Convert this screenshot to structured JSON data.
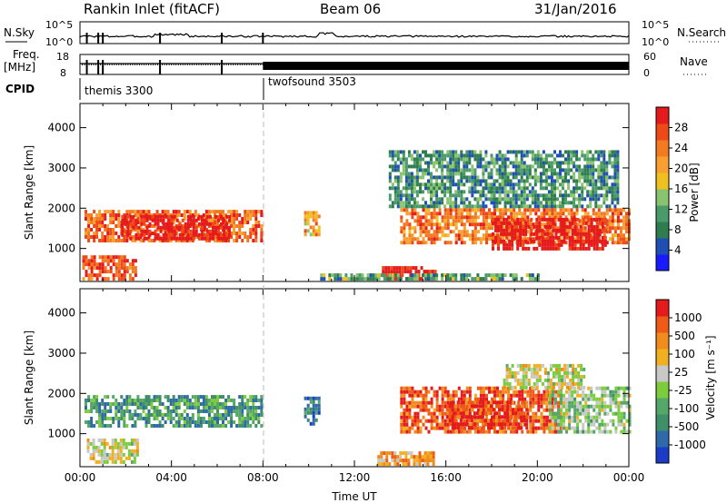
{
  "header": {
    "station": "Rankin Inlet (fitACF)",
    "beam": "Beam 06",
    "date": "31/Jan/2016"
  },
  "strips": {
    "nsky_label": "N.Sky",
    "nsky_ticks": [
      "10^5",
      "10^0"
    ],
    "nsearch_label": "N.Search",
    "nsearch_ticks": [
      "10^5",
      "10^0"
    ],
    "freq_label_top": "Freq.",
    "freq_label_unit": "[MHz]",
    "freq_ticks": [
      "18",
      "8"
    ],
    "nave_label": "Nave",
    "nave_ticks": [
      "60",
      "0"
    ],
    "cpid_label": "CPID",
    "cpid_segments": [
      {
        "name": "themis 3300",
        "start_hour": 0
      },
      {
        "name": "twofsound 3503",
        "start_hour": 8
      }
    ]
  },
  "chart_data": [
    {
      "type": "heatmap",
      "panel": "power",
      "ylabel": "Slant Range [km]",
      "ylim": [
        180,
        4600
      ],
      "yticks": [
        "1000",
        "2000",
        "3000",
        "4000"
      ],
      "x_tick_labels": [
        "00:00",
        "04:00",
        "08:00",
        "12:00",
        "16:00",
        "20:00",
        "00:00"
      ],
      "colorbar": {
        "label": "Power [dB]",
        "ticks": [
          "4",
          "8",
          "12",
          "16",
          "20",
          "24",
          "28"
        ],
        "colors": [
          "#1a1aff",
          "#1f4fb4",
          "#2e7d4f",
          "#4a9a6a",
          "#89c36f",
          "#f0c020",
          "#f7a030",
          "#f47a20",
          "#ee4a18",
          "#e41a1c"
        ]
      },
      "regions": [
        {
          "t0": 0.2,
          "t1": 7.9,
          "r0": 1150,
          "r1": 1900,
          "level": 0.8
        },
        {
          "t0": 1.8,
          "t1": 6.5,
          "r0": 1200,
          "r1": 1750,
          "level": 1.0
        },
        {
          "t0": 0.1,
          "t1": 2.5,
          "r0": 200,
          "r1": 800,
          "level": 0.85
        },
        {
          "t0": 9.8,
          "t1": 10.5,
          "r0": 1300,
          "r1": 1900,
          "level": 0.65
        },
        {
          "t0": 13.2,
          "t1": 15.5,
          "r0": 200,
          "r1": 500,
          "level": 1.0
        },
        {
          "t0": 10.5,
          "t1": 20.0,
          "r0": 200,
          "r1": 350,
          "level": 0.35
        },
        {
          "t0": 14.0,
          "t1": 24.0,
          "r0": 1100,
          "r1": 2000,
          "level": 0.75
        },
        {
          "t0": 18.0,
          "t1": 23.0,
          "r0": 950,
          "r1": 1700,
          "level": 1.0
        },
        {
          "t0": 13.5,
          "t1": 23.5,
          "r0": 2000,
          "r1": 3400,
          "level": 0.3
        }
      ]
    },
    {
      "type": "heatmap",
      "panel": "velocity",
      "ylabel": "Slant Range [km]",
      "ylim": [
        180,
        4600
      ],
      "yticks": [
        "1000",
        "2000",
        "3000",
        "4000"
      ],
      "xlabel": "Time UT",
      "x_tick_labels": [
        "00:00",
        "04:00",
        "08:00",
        "12:00",
        "16:00",
        "20:00",
        "00:00"
      ],
      "colorbar": {
        "label": "Velocity [m s⁻¹]",
        "ticks": [
          "1000",
          "500",
          "100",
          "25",
          "-25",
          "-100",
          "-500",
          "-1000"
        ],
        "colors": [
          "#1a3cc8",
          "#2f6aa8",
          "#3f8f68",
          "#56a86a",
          "#7ccc3c",
          "#c8c8c8",
          "#f0b020",
          "#f08c1c",
          "#ef5a16",
          "#e41a1c"
        ]
      },
      "regions": [
        {
          "t0": 0.2,
          "t1": 7.9,
          "r0": 1150,
          "r1": 1900,
          "level": 0.28
        },
        {
          "t0": 0.3,
          "t1": 2.5,
          "r0": 250,
          "r1": 800,
          "level": 0.55
        },
        {
          "t0": 9.8,
          "t1": 10.5,
          "r0": 1200,
          "r1": 1900,
          "level": 0.2
        },
        {
          "t0": 13.0,
          "t1": 15.5,
          "r0": 200,
          "r1": 500,
          "level": 0.72
        },
        {
          "t0": 14.0,
          "t1": 21.0,
          "r0": 1000,
          "r1": 2100,
          "level": 0.85
        },
        {
          "t0": 16.0,
          "t1": 19.5,
          "r0": 1100,
          "r1": 1800,
          "level": 0.95
        },
        {
          "t0": 20.5,
          "t1": 24.0,
          "r0": 1000,
          "r1": 2100,
          "level": 0.45
        },
        {
          "t0": 18.5,
          "t1": 22.0,
          "r0": 2100,
          "r1": 2700,
          "level": 0.55
        }
      ]
    }
  ]
}
